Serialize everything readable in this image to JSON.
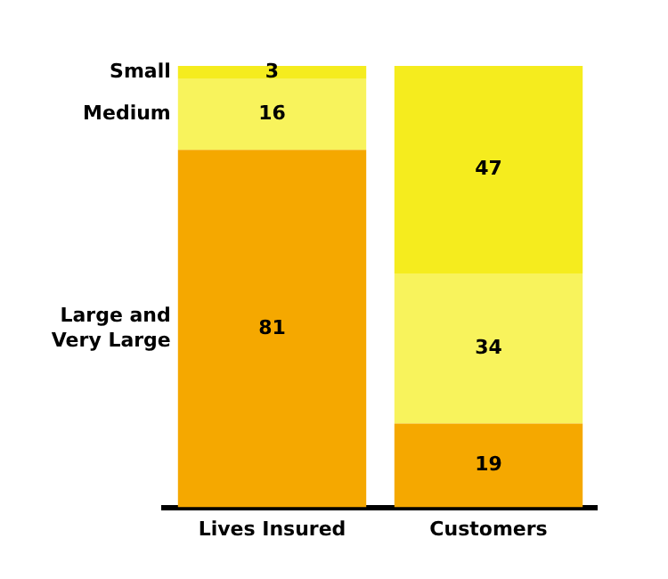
{
  "chart_data": {
    "type": "bar",
    "stacked": true,
    "categories": [
      "Lives Insured",
      "Customers"
    ],
    "series": [
      {
        "name": "Large and Very Large",
        "color": "#f5a800",
        "values": [
          81,
          19
        ]
      },
      {
        "name": "Medium",
        "color": "#f8f35c",
        "values": [
          16,
          34
        ]
      },
      {
        "name": "Small",
        "color": "#f5ec1e",
        "values": [
          3,
          47
        ]
      }
    ],
    "data_labels": true,
    "legend": false,
    "grid": false,
    "tick_labels": "x"
  }
}
